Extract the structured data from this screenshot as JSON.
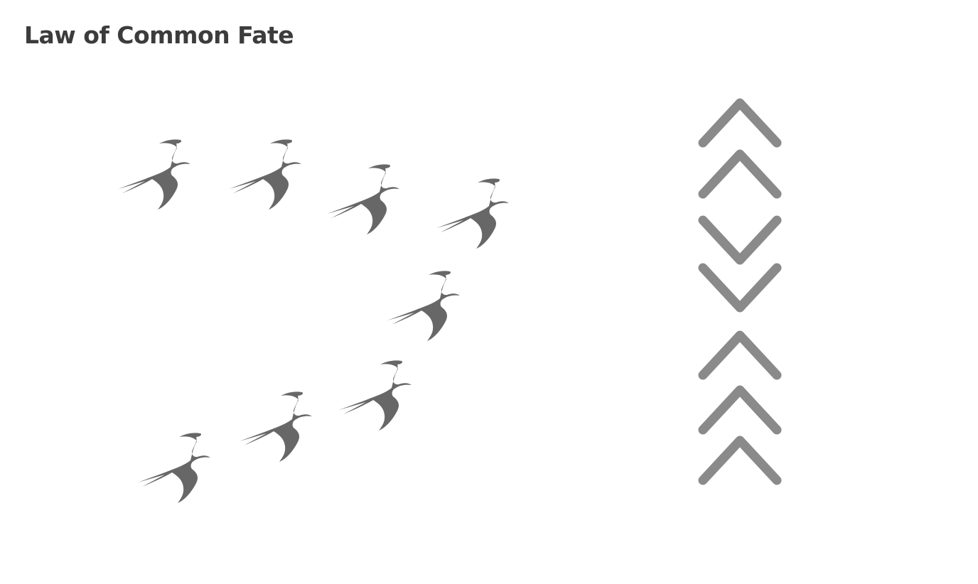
{
  "title": "Law of Common Fate",
  "colors": {
    "bird": "#676767",
    "chevron": "#8a8a8a",
    "title": "#3c3c3c",
    "background": "#ffffff"
  },
  "birds": [
    {
      "name": "swallow-icon"
    },
    {
      "name": "swallow-icon"
    },
    {
      "name": "swallow-icon"
    },
    {
      "name": "swallow-icon"
    },
    {
      "name": "swallow-icon"
    },
    {
      "name": "swallow-icon"
    },
    {
      "name": "swallow-icon"
    },
    {
      "name": "swallow-icon"
    }
  ],
  "chevrons": [
    {
      "direction": "up"
    },
    {
      "direction": "up"
    },
    {
      "direction": "down"
    },
    {
      "direction": "down"
    },
    {
      "direction": "up"
    },
    {
      "direction": "up"
    },
    {
      "direction": "up"
    }
  ]
}
